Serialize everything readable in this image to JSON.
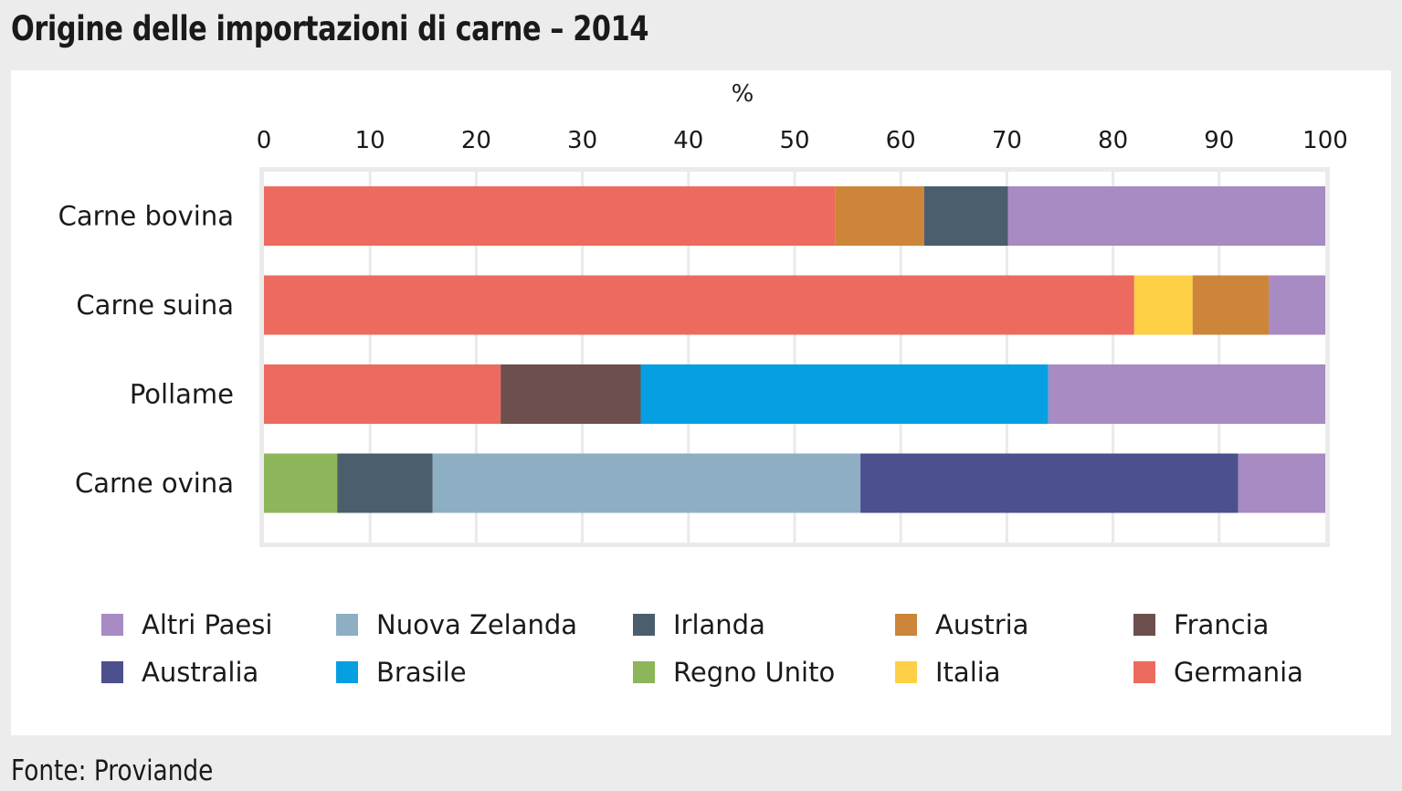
{
  "title": "Origine delle importazioni di carne – 2014",
  "source": "Fonte: Proviande",
  "colors": {
    "Germania": "#ec6b5e",
    "Austria": "#cd853a",
    "Irlanda": "#4a5e6e",
    "Altri Paesi": "#a78bc2",
    "Italia": "#fdd046",
    "Francia": "#6d4f4e",
    "Brasile": "#069fe1",
    "Regno Unito": "#8db55a",
    "Nuova Zelanda": "#8eafc3",
    "Australia": "#4c508d"
  },
  "chart_data": {
    "type": "bar",
    "orientation": "horizontal",
    "stacked": true,
    "title": "Origine delle importazioni di carne – 2014",
    "xlabel": "%",
    "xlim": [
      0,
      100
    ],
    "xticks": [
      0,
      10,
      20,
      30,
      40,
      50,
      60,
      70,
      80,
      90,
      100
    ],
    "grid": true,
    "categories": [
      "Carne bovina",
      "Carne suina",
      "Pollame",
      "Carne ovina"
    ],
    "series": [
      {
        "name": "Germania",
        "values": [
          53.8,
          82.0,
          22.3,
          0
        ]
      },
      {
        "name": "Regno Unito",
        "values": [
          0,
          0,
          0,
          6.9
        ]
      },
      {
        "name": "Austria",
        "values": [
          8.4,
          0,
          0,
          0
        ]
      },
      {
        "name": "Italia",
        "values": [
          0,
          5.5,
          0,
          0
        ]
      },
      {
        "name": "Irlanda",
        "values": [
          7.9,
          0,
          0,
          9.0
        ]
      },
      {
        "name": "Francia",
        "values": [
          0,
          0,
          13.2,
          0
        ]
      },
      {
        "name": "Austria ",
        "values": [
          0,
          7.2,
          0,
          0
        ]
      },
      {
        "name": "Brasile",
        "values": [
          0,
          0,
          38.4,
          0
        ]
      },
      {
        "name": "Nuova Zelanda",
        "values": [
          0,
          0,
          0,
          40.3
        ]
      },
      {
        "name": "Australia",
        "values": [
          0,
          0,
          0,
          35.6
        ]
      },
      {
        "name": "Altri Paesi",
        "values": [
          29.9,
          5.3,
          26.1,
          8.2
        ]
      }
    ],
    "legend": [
      [
        "Altri Paesi",
        "Nuova Zelanda",
        "Irlanda",
        "Austria",
        "Francia"
      ],
      [
        "Australia",
        "Brasile",
        "Regno Unito",
        "Italia",
        "Germania"
      ]
    ]
  }
}
